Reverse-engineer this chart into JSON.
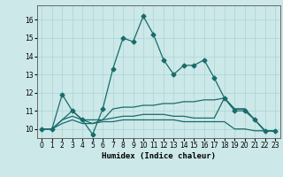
{
  "xlabel": "Humidex (Indice chaleur)",
  "ylabel": "",
  "bg_color": "#cce8e8",
  "line_color": "#1a6b6b",
  "xlim": [
    -0.5,
    23.5
  ],
  "ylim": [
    9.5,
    16.8
  ],
  "yticks": [
    10,
    11,
    12,
    13,
    14,
    15,
    16
  ],
  "xticks": [
    0,
    1,
    2,
    3,
    4,
    5,
    6,
    7,
    8,
    9,
    10,
    11,
    12,
    13,
    14,
    15,
    16,
    17,
    18,
    19,
    20,
    21,
    22,
    23
  ],
  "series": [
    {
      "x": [
        0,
        1,
        2,
        3,
        4,
        5,
        6,
        7,
        8,
        9,
        10,
        11,
        12,
        13,
        14,
        15,
        16,
        17,
        18,
        19,
        20,
        21,
        22,
        23
      ],
      "y": [
        10.0,
        10.0,
        11.9,
        11.0,
        10.5,
        9.7,
        11.1,
        13.3,
        15.0,
        14.8,
        16.2,
        15.2,
        13.8,
        13.0,
        13.5,
        13.5,
        13.8,
        12.8,
        11.7,
        11.0,
        11.0,
        10.5,
        9.9,
        9.9
      ],
      "marker": "D",
      "markersize": 2.5
    },
    {
      "x": [
        0,
        1,
        2,
        3,
        4,
        5,
        6,
        7,
        8,
        9,
        10,
        11,
        12,
        13,
        14,
        15,
        16,
        17,
        18,
        19,
        20,
        21,
        22,
        23
      ],
      "y": [
        10.0,
        10.0,
        10.5,
        11.0,
        10.5,
        10.3,
        10.5,
        11.1,
        11.2,
        11.2,
        11.3,
        11.3,
        11.4,
        11.4,
        11.5,
        11.5,
        11.6,
        11.6,
        11.7,
        11.1,
        11.1,
        10.5,
        9.9,
        9.9
      ],
      "marker": null,
      "markersize": 0
    },
    {
      "x": [
        0,
        1,
        2,
        3,
        4,
        5,
        6,
        7,
        8,
        9,
        10,
        11,
        12,
        13,
        14,
        15,
        16,
        17,
        18,
        19,
        20,
        21,
        22,
        23
      ],
      "y": [
        10.0,
        10.0,
        10.3,
        10.5,
        10.3,
        10.3,
        10.4,
        10.4,
        10.5,
        10.5,
        10.5,
        10.5,
        10.5,
        10.5,
        10.4,
        10.4,
        10.4,
        10.4,
        10.4,
        10.0,
        10.0,
        9.9,
        9.9,
        9.9
      ],
      "marker": null,
      "markersize": 0
    },
    {
      "x": [
        0,
        1,
        2,
        3,
        4,
        5,
        6,
        7,
        8,
        9,
        10,
        11,
        12,
        13,
        14,
        15,
        16,
        17,
        18,
        19,
        20,
        21,
        22,
        23
      ],
      "y": [
        10.0,
        10.0,
        10.5,
        10.7,
        10.5,
        10.5,
        10.5,
        10.6,
        10.7,
        10.7,
        10.8,
        10.8,
        10.8,
        10.7,
        10.7,
        10.6,
        10.6,
        10.6,
        11.7,
        11.1,
        11.1,
        10.5,
        9.9,
        9.9
      ],
      "marker": null,
      "markersize": 0
    }
  ]
}
